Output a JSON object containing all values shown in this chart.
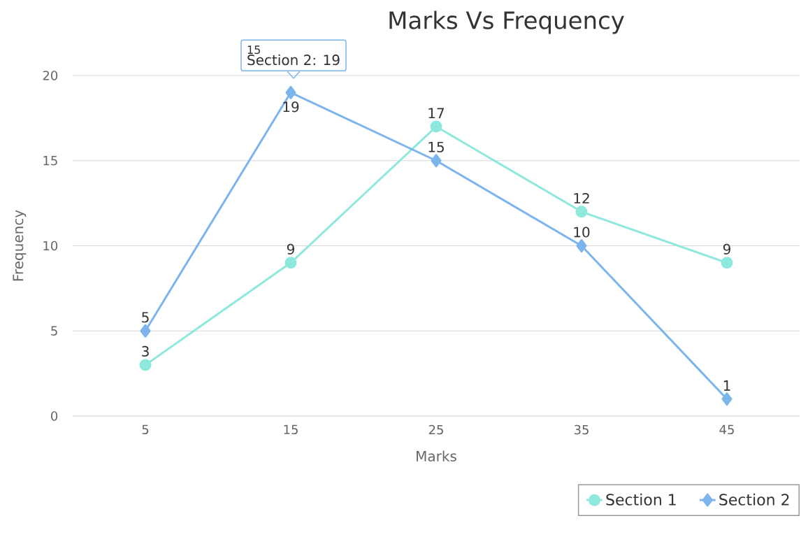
{
  "chart_data": {
    "type": "line",
    "title": "Marks Vs Frequency",
    "xlabel": "Marks",
    "ylabel": "Frequency",
    "categories": [
      "5",
      "15",
      "25",
      "35",
      "45"
    ],
    "series": [
      {
        "name": "Section 1",
        "color": "#8ee8dc",
        "marker": "circle",
        "values": [
          3,
          9,
          17,
          12,
          9
        ]
      },
      {
        "name": "Section 2",
        "color": "#7cb5ec",
        "marker": "diamond",
        "values": [
          5,
          19,
          15,
          10,
          1
        ]
      }
    ],
    "ylim": [
      0,
      20
    ],
    "yticks": [
      0,
      5,
      10,
      15,
      20
    ],
    "grid": "y",
    "legend": "bottom right",
    "data_labels": true,
    "annotations": [
      "15",
      "Section 2: 19"
    ]
  }
}
